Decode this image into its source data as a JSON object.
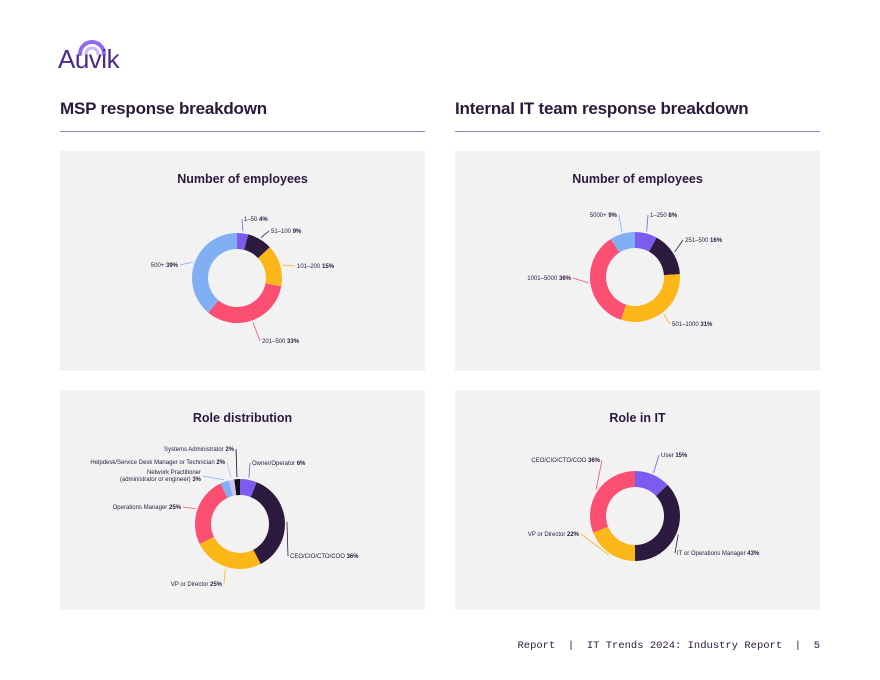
{
  "brand": {
    "logo_text": "Auvik",
    "logo_color": "#4b2a8a"
  },
  "sections": {
    "left_title": "MSP response breakdown",
    "right_title": "Internal IT team response breakdown"
  },
  "footer": {
    "report": "Report",
    "separator": "|",
    "doc_title": "IT Trends 2024: Industry Report",
    "page": "5"
  },
  "chart_data": [
    {
      "type": "pie",
      "title": "Number of employees",
      "donut": true,
      "slices": [
        {
          "label": "1–50",
          "value": 4,
          "color": "#7b5bf0"
        },
        {
          "label": "51–100",
          "value": 9,
          "color": "#2d1a3f"
        },
        {
          "label": "101–200",
          "value": 15,
          "color": "#fbb617"
        },
        {
          "label": "201–500",
          "value": 33,
          "color": "#fb4f72"
        },
        {
          "label": "500+",
          "value": 39,
          "color": "#80b0f3"
        }
      ]
    },
    {
      "type": "pie",
      "title": "Number of employees",
      "donut": true,
      "slices": [
        {
          "label": "1–250",
          "value": 8,
          "color": "#7b5bf0"
        },
        {
          "label": "251–500",
          "value": 16,
          "color": "#2d1a3f"
        },
        {
          "label": "501–1000",
          "value": 31,
          "color": "#fbb617"
        },
        {
          "label": "1001–5000",
          "value": 36,
          "color": "#fb4f72"
        },
        {
          "label": "5000+",
          "value": 9,
          "color": "#80b0f3"
        }
      ]
    },
    {
      "type": "pie",
      "title": "Role distribution",
      "donut": true,
      "slices": [
        {
          "label": "Owner/Operator",
          "value": 6,
          "color": "#7b5bf0"
        },
        {
          "label": "CEO/CIO/CTO/COO",
          "value": 36,
          "color": "#2d1a3f"
        },
        {
          "label": "VP or Director",
          "value": 25,
          "color": "#fbb617"
        },
        {
          "label": "Operations Manager",
          "value": 25,
          "color": "#fb4f72"
        },
        {
          "label": "Network Practitioner",
          "label2": "(administrator or engineer)",
          "value": 3,
          "color": "#80b0f3"
        },
        {
          "label": "Helpdesk/Service Desk Manager  or Technician",
          "value": 2,
          "color": "#c9c1f7"
        },
        {
          "label": "Systems Administrator",
          "value": 2,
          "color": "#111111"
        }
      ]
    },
    {
      "type": "pie",
      "title": "Role in IT",
      "donut": true,
      "slices": [
        {
          "label": "User",
          "value": 15,
          "color": "#7b5bf0"
        },
        {
          "label": "IT or Operations Manager",
          "value": 43,
          "color": "#2d1a3f"
        },
        {
          "label": "VP or Director",
          "value": 22,
          "color": "#fbb617"
        },
        {
          "label": "CEO/CIO/CTO/COO",
          "value": 36,
          "color": "#fb4f72"
        }
      ]
    }
  ]
}
